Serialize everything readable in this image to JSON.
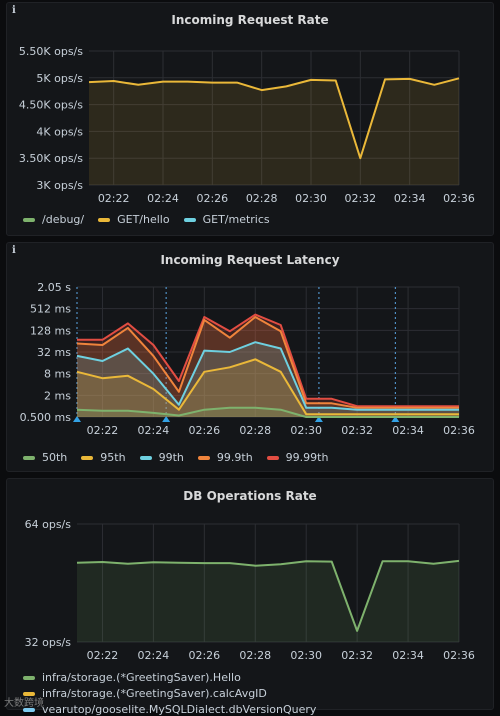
{
  "panels": {
    "p1": {
      "info": "i",
      "title": "Incoming Request Rate"
    },
    "p2": {
      "info": "i",
      "title": "Incoming Request Latency"
    },
    "p3": {
      "title": "DB Operations Rate"
    }
  },
  "watermark": "大数跨境",
  "colors": {
    "background": "#0b0c0e",
    "panel": "#141619",
    "grid": "#2c2e33",
    "axis_text": "#c7d0d9",
    "green": "#7eb26d",
    "yellow": "#eab839",
    "cyan": "#6ed0e0",
    "orange": "#ef843c",
    "red": "#e24d42",
    "light_blue": "#7ecbf0",
    "white_series": "#c8c8c8"
  },
  "chart_data": [
    {
      "type": "area",
      "title": "Incoming Request Rate",
      "x_ticks": [
        "02:22",
        "02:24",
        "02:26",
        "02:28",
        "02:30",
        "02:32",
        "02:34",
        "02:36"
      ],
      "y_ticks": [
        "3K ops/s",
        "3.50K ops/s",
        "4K ops/s",
        "4.50K ops/s",
        "5K ops/s",
        "5.50K ops/s"
      ],
      "ylim": [
        3000,
        5500
      ],
      "x_minutes": [
        "02:21",
        "02:22",
        "02:23",
        "02:24",
        "02:25",
        "02:26",
        "02:27",
        "02:28",
        "02:29",
        "02:30",
        "02:31",
        "02:32",
        "02:33",
        "02:34",
        "02:35",
        "02:36"
      ],
      "series": [
        {
          "name": "/debug/",
          "color": "#7eb26d",
          "values": []
        },
        {
          "name": "GET/hello",
          "color": "#eab839",
          "values": [
            4920,
            4940,
            4870,
            4930,
            4930,
            4910,
            4910,
            4770,
            4840,
            4960,
            4950,
            3500,
            4970,
            4980,
            4870,
            4990
          ]
        },
        {
          "name": "GET/metrics",
          "color": "#6ed0e0",
          "values": []
        }
      ],
      "legend_placement": "bottom-left",
      "grid": true
    },
    {
      "type": "area",
      "title": "Incoming Request Latency",
      "y_scale": "log2",
      "x_ticks": [
        "02:22",
        "02:24",
        "02:26",
        "02:28",
        "02:30",
        "02:32",
        "02:34",
        "02:36"
      ],
      "y_ticks": [
        "0.500 ms",
        "2 ms",
        "8 ms",
        "32 ms",
        "128 ms",
        "512 ms",
        "2.05 s"
      ],
      "y_tick_values_ms": [
        0.5,
        2,
        8,
        32,
        128,
        512,
        2048
      ],
      "x_minutes": [
        "02:21",
        "02:22",
        "02:23",
        "02:24",
        "02:25",
        "02:26",
        "02:27",
        "02:28",
        "02:29",
        "02:30",
        "02:31",
        "02:32",
        "02:33",
        "02:34",
        "02:35",
        "02:36"
      ],
      "series": [
        {
          "name": "50th",
          "color": "#7eb26d",
          "values_ms": [
            0.8,
            0.75,
            0.75,
            0.65,
            0.55,
            0.8,
            0.9,
            0.9,
            0.8,
            0.5,
            0.5,
            0.5,
            0.5,
            0.5,
            0.5,
            0.5
          ]
        },
        {
          "name": "95th",
          "color": "#eab839",
          "values_ms": [
            9,
            6,
            7,
            3,
            0.8,
            9,
            12,
            20,
            9,
            0.6,
            0.6,
            0.6,
            0.6,
            0.6,
            0.6,
            0.6
          ]
        },
        {
          "name": "99th",
          "color": "#6ed0e0",
          "values_ms": [
            25,
            18,
            40,
            8,
            1.1,
            35,
            32,
            60,
            40,
            0.9,
            0.9,
            0.8,
            0.8,
            0.8,
            0.8,
            0.8
          ]
        },
        {
          "name": "99.9th",
          "color": "#ef843c",
          "values_ms": [
            55,
            50,
            150,
            25,
            2.5,
            250,
            80,
            300,
            120,
            1.2,
            1.2,
            0.9,
            0.9,
            0.9,
            0.9,
            0.9
          ]
        },
        {
          "name": "99.99th",
          "color": "#e24d42",
          "values_ms": [
            70,
            70,
            200,
            50,
            5,
            300,
            120,
            350,
            180,
            1.6,
            1.6,
            1,
            1,
            1,
            1,
            1
          ]
        }
      ],
      "annotations": [
        "02:21",
        "02:24.5",
        "02:30.5",
        "02:33.5"
      ],
      "legend_placement": "bottom-left",
      "grid": true
    },
    {
      "type": "area",
      "title": "DB Operations Rate",
      "x_ticks": [
        "02:22",
        "02:24",
        "02:26",
        "02:28",
        "02:30",
        "02:32",
        "02:34",
        "02:36"
      ],
      "y_ticks": [
        "32 ops/s",
        "64 ops/s"
      ],
      "ylim": [
        32,
        64
      ],
      "x_minutes": [
        "02:21",
        "02:22",
        "02:23",
        "02:24",
        "02:25",
        "02:26",
        "02:27",
        "02:28",
        "02:29",
        "02:30",
        "02:31",
        "02:32",
        "02:33",
        "02:34",
        "02:35",
        "02:36"
      ],
      "series": [
        {
          "name": "infra/storage.(*GreetingSaver).Hello",
          "color": "#7eb26d",
          "values": [
            53.5,
            53.7,
            53.2,
            53.6,
            53.5,
            53.4,
            53.4,
            52.7,
            53.1,
            53.9,
            53.8,
            35.0,
            53.9,
            53.9,
            53.2,
            54.0
          ]
        },
        {
          "name": "infra/storage.(*GreetingSaver).calcAvgID",
          "color": "#eab839",
          "values": []
        },
        {
          "name": "vearutop/gooselite.MySQLDialect.dbVersionQuery",
          "color": "#7ecbf0",
          "values": []
        }
      ],
      "legend_placement": "bottom-left",
      "grid": true
    }
  ]
}
